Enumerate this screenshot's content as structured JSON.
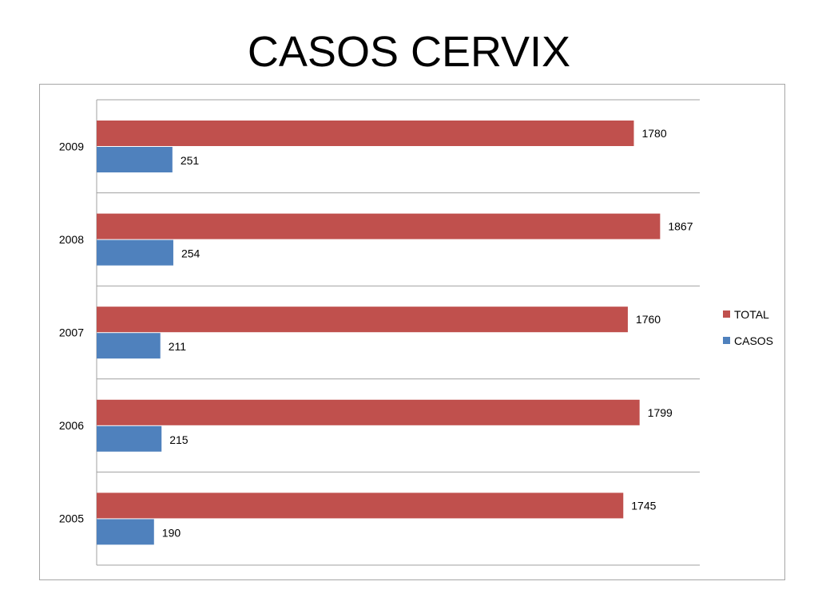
{
  "slide": {
    "title": "CASOS CERVIX"
  },
  "chart_data": {
    "type": "bar",
    "orientation": "horizontal",
    "categories": [
      "2009",
      "2008",
      "2007",
      "2006",
      "2005"
    ],
    "series": [
      {
        "name": "TOTAL",
        "color": "#C0504D",
        "values": [
          1780,
          1867,
          1760,
          1799,
          1745
        ]
      },
      {
        "name": "CASOS",
        "color": "#4F81BD",
        "values": [
          251,
          254,
          211,
          215,
          190
        ]
      }
    ],
    "title": "",
    "xlabel": "",
    "ylabel": "",
    "xlim": [
      0,
      2000
    ],
    "grid": "horizontal",
    "legend": "right",
    "data_labels": true
  }
}
